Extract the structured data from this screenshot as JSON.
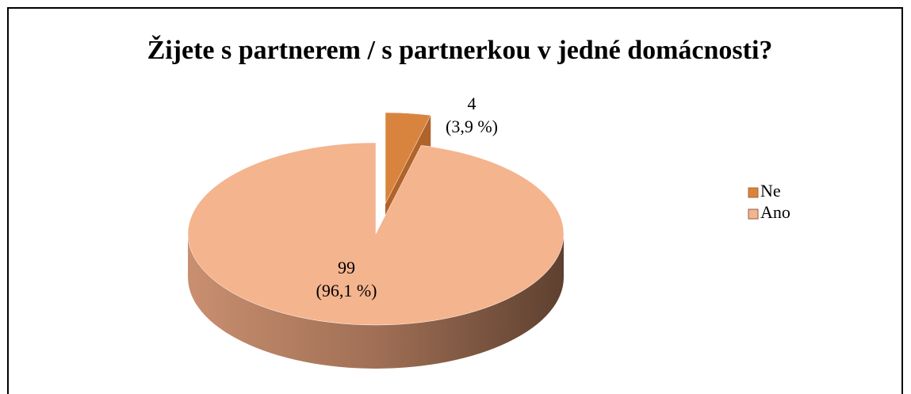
{
  "chart_data": {
    "type": "pie",
    "title": "Žijete s partnerem / s partnerkou v jedné domácnosti?",
    "categories": [
      "Ne",
      "Ano"
    ],
    "values": [
      4,
      99
    ],
    "percents": [
      3.9,
      96.1
    ],
    "percent_labels": [
      "(3,9 %)",
      "(96,1 %)"
    ],
    "colors": [
      "#d9843e",
      "#f4b48e"
    ],
    "side_colors": [
      "#b0632a",
      "#8a5f48"
    ],
    "legend": "right"
  }
}
